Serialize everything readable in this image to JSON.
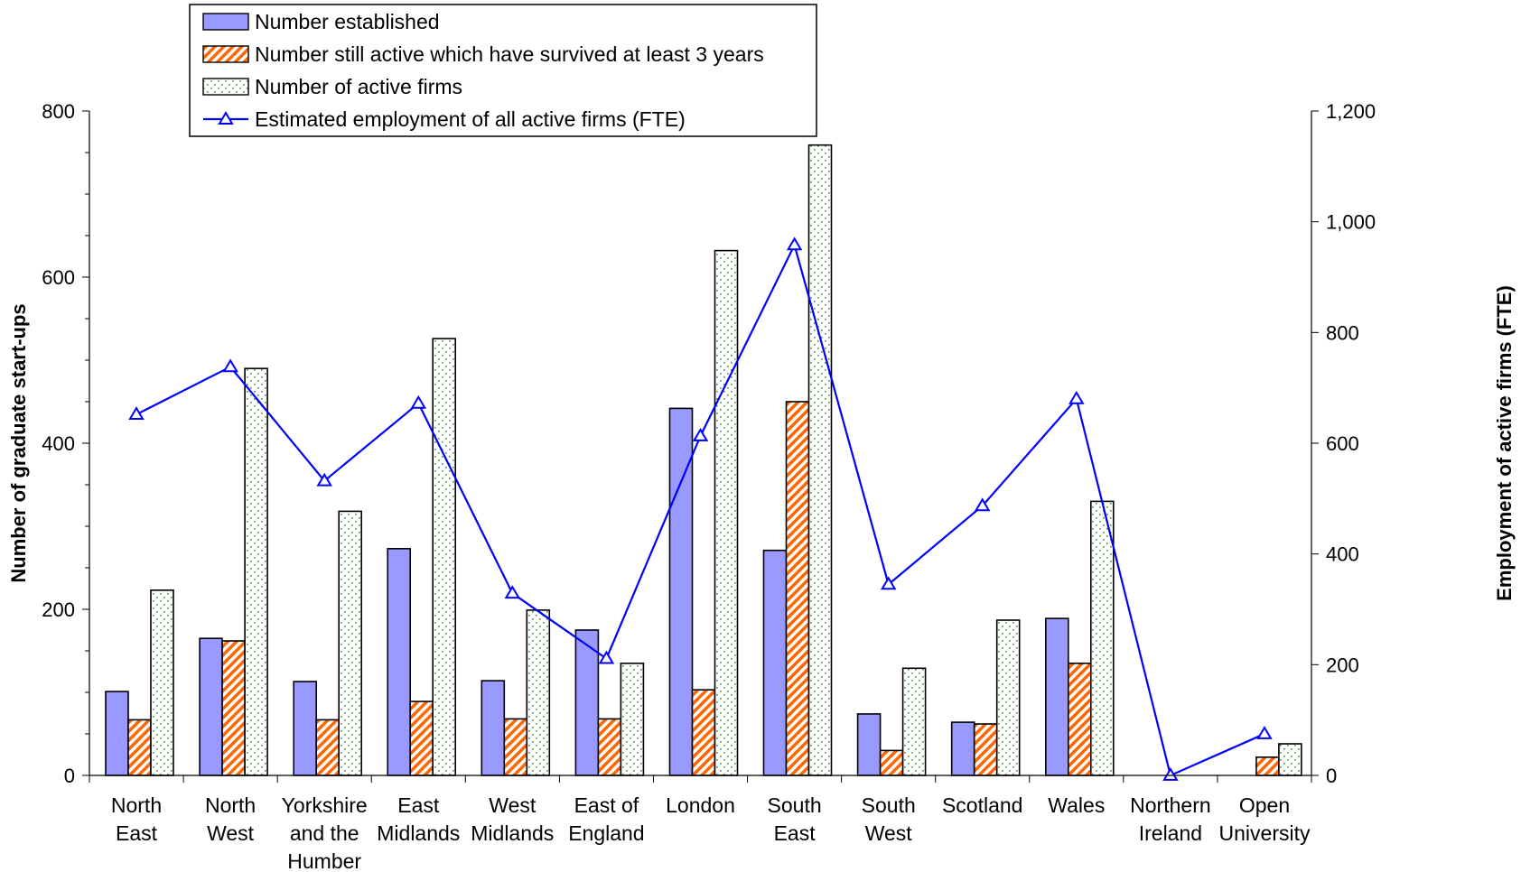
{
  "chart_data": {
    "type": "bar",
    "categories": [
      [
        "North",
        "East"
      ],
      [
        "North",
        "West"
      ],
      [
        "Yorkshire",
        "and the",
        "Humber"
      ],
      [
        "East",
        "Midlands"
      ],
      [
        "West",
        "Midlands"
      ],
      [
        "East of",
        "England"
      ],
      [
        "London"
      ],
      [
        "South",
        "East"
      ],
      [
        "South",
        "West"
      ],
      [
        "Scotland"
      ],
      [
        "Wales"
      ],
      [
        "Northern",
        "Ireland"
      ],
      [
        "Open",
        "University"
      ]
    ],
    "series": [
      {
        "name": "Number established",
        "type": "bar",
        "axis": "left",
        "color": "#9999FF",
        "values": [
          101,
          165,
          113,
          273,
          114,
          175,
          442,
          271,
          74,
          64,
          189,
          0,
          0
        ]
      },
      {
        "name": "Number still active which have survived at least 3 years",
        "type": "bar",
        "axis": "left",
        "color": "#FF6600",
        "values": [
          67,
          162,
          67,
          89,
          68,
          68,
          103,
          450,
          30,
          62,
          135,
          0,
          22
        ]
      },
      {
        "name": "Number of active firms",
        "type": "bar",
        "axis": "left",
        "color": "#339933",
        "values": [
          223,
          490,
          318,
          526,
          199,
          135,
          632,
          759,
          129,
          187,
          330,
          0,
          38
        ]
      },
      {
        "name": "Estimated employment of all active firms (FTE)",
        "type": "line",
        "axis": "right",
        "color": "#0000FF",
        "values": [
          652,
          738,
          532,
          672,
          329,
          211,
          613,
          958,
          345,
          487,
          680,
          0,
          75
        ]
      }
    ],
    "ylabel": "Number of graduate start-ups",
    "y2label": "Employment of active firms (FTE)",
    "ylim": [
      0,
      800
    ],
    "yticks": [
      0,
      200,
      400,
      600,
      800
    ],
    "ytick_labels": [
      "0",
      "200",
      "400",
      "600",
      "800"
    ],
    "y2lim": [
      0,
      1200
    ],
    "y2ticks": [
      0,
      200,
      400,
      600,
      800,
      1000,
      1200
    ],
    "y2tick_labels": [
      "0",
      "200",
      "400",
      "600",
      "800",
      "1,000",
      "1,200"
    ],
    "grid": false,
    "legend": "top-left"
  }
}
